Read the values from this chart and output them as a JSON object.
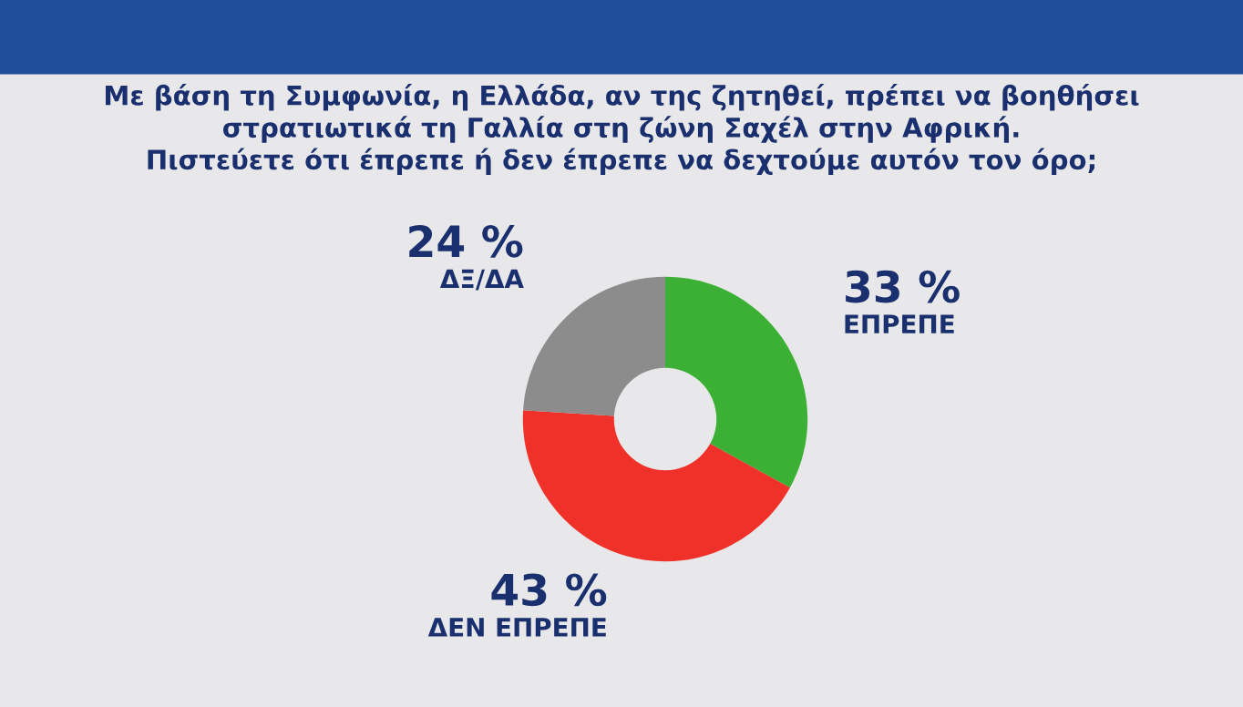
{
  "chart_data": {
    "type": "donut",
    "title": "Με βάση τη Συμφωνία, η Ελλάδα, αν της ζητηθεί, πρέπει να βοηθήσει\nστρατιωτικά τη Γαλλία στη ζώνη Σαχέλ στην Αφρική.\nΠιστεύετε ότι έπρεπε ή δεν έπρεπε να δεχτούμε αυτόν τον όρο;",
    "categories": [
      "ΕΠΡΕΠΕ",
      "ΔΕΝ ΕΠΡΕΠΕ",
      "ΔΞ/ΔΑ"
    ],
    "values": [
      33,
      43,
      24
    ],
    "colors": [
      "#3cb034",
      "#f0312a",
      "#8c8c8c"
    ],
    "value_labels": [
      "33 %",
      "43 %",
      "24 %"
    ],
    "legend": false
  }
}
